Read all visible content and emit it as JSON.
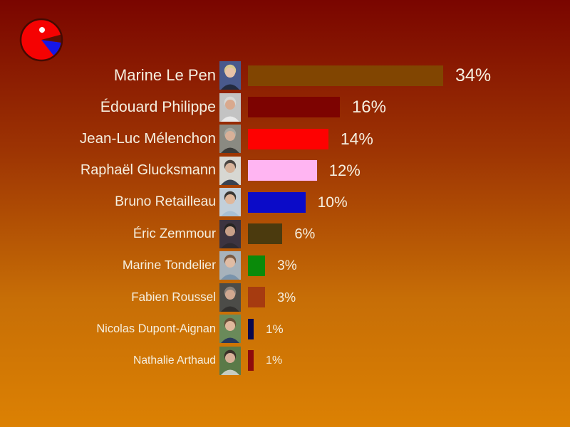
{
  "logo": {
    "description": "pac-man-style pie logo",
    "colors": {
      "body": "#F50202",
      "wedge": "#1616E8",
      "mouth": "#5E1003",
      "outline": "#450A02",
      "eye": "#FFFFFF"
    }
  },
  "chart_data": {
    "type": "bar",
    "orientation": "horizontal",
    "title": "",
    "xlabel": "",
    "ylabel": "",
    "categories": [
      "Marine Le Pen",
      "Édouard Philippe",
      "Jean-Luc Mélenchon",
      "Raphaël Glucksmann",
      "Bruno Retailleau",
      "Éric Zemmour",
      "Marine Tondelier",
      "Fabien Roussel",
      "Nicolas Dupont-Aignan",
      "Nathalie Arthaud"
    ],
    "values": [
      34,
      16,
      14,
      12,
      10,
      6,
      3,
      3,
      1,
      1
    ],
    "value_labels": [
      "34%",
      "16%",
      "14%",
      "12%",
      "10%",
      "6%",
      "3%",
      "3%",
      "1%",
      "1%"
    ],
    "bar_colors": [
      "#814501",
      "#7D0301",
      "#FE0101",
      "#FFB5F2",
      "#0B0BC8",
      "#4B3A0E",
      "#0A8A0A",
      "#A63B10",
      "#08084E",
      "#8E0A0C"
    ],
    "xlim": [
      0,
      40
    ],
    "grid": false,
    "legend": false,
    "text_color": "#F5EFDF",
    "background_gradient": [
      "#7A0500",
      "#DC8103"
    ]
  },
  "photos": [
    {
      "person": "Marine Le Pen",
      "bg": "#49598C",
      "hair": "#D9C98E",
      "skin": "#E8C2A8",
      "clothes": "#232B40"
    },
    {
      "person": "Édouard Philippe",
      "bg": "#C3C3C3",
      "hair": "#D8D8D6",
      "skin": "#D9A98E",
      "clothes": "#E9E9E9"
    },
    {
      "person": "Jean-Luc Mélenchon",
      "bg": "#8A8A82",
      "hair": "#A8A8A0",
      "skin": "#D8B098",
      "clothes": "#3A3A38"
    },
    {
      "person": "Raphaël Glucksmann",
      "bg": "#D7D7D2",
      "hair": "#4A4440",
      "skin": "#D8B49C",
      "clothes": "#3A4250"
    },
    {
      "person": "Bruno Retailleau",
      "bg": "#C2CFDA",
      "hair": "#3A3632",
      "skin": "#E0B89C",
      "clothes": "#A8C0D4"
    },
    {
      "person": "Éric Zemmour",
      "bg": "#3C3440",
      "hair": "#262422",
      "skin": "#C8A088",
      "clothes": "#2E2A30"
    },
    {
      "person": "Marine Tondelier",
      "bg": "#A7B2BB",
      "hair": "#7A5A42",
      "skin": "#E0BCA4",
      "clothes": "#7A94AC"
    },
    {
      "person": "Fabien Roussel",
      "bg": "#4C4C48",
      "hair": "#8A8078",
      "skin": "#D0A890",
      "clothes": "#32302E"
    },
    {
      "person": "Nicolas Dupont-Aignan",
      "bg": "#6A8A5A",
      "hair": "#6A5038",
      "skin": "#E0B89C",
      "clothes": "#2A3A5A"
    },
    {
      "person": "Nathalie Arthaud",
      "bg": "#5A7A48",
      "hair": "#3A3028",
      "skin": "#D8B098",
      "clothes": "#C8CCC0"
    }
  ]
}
